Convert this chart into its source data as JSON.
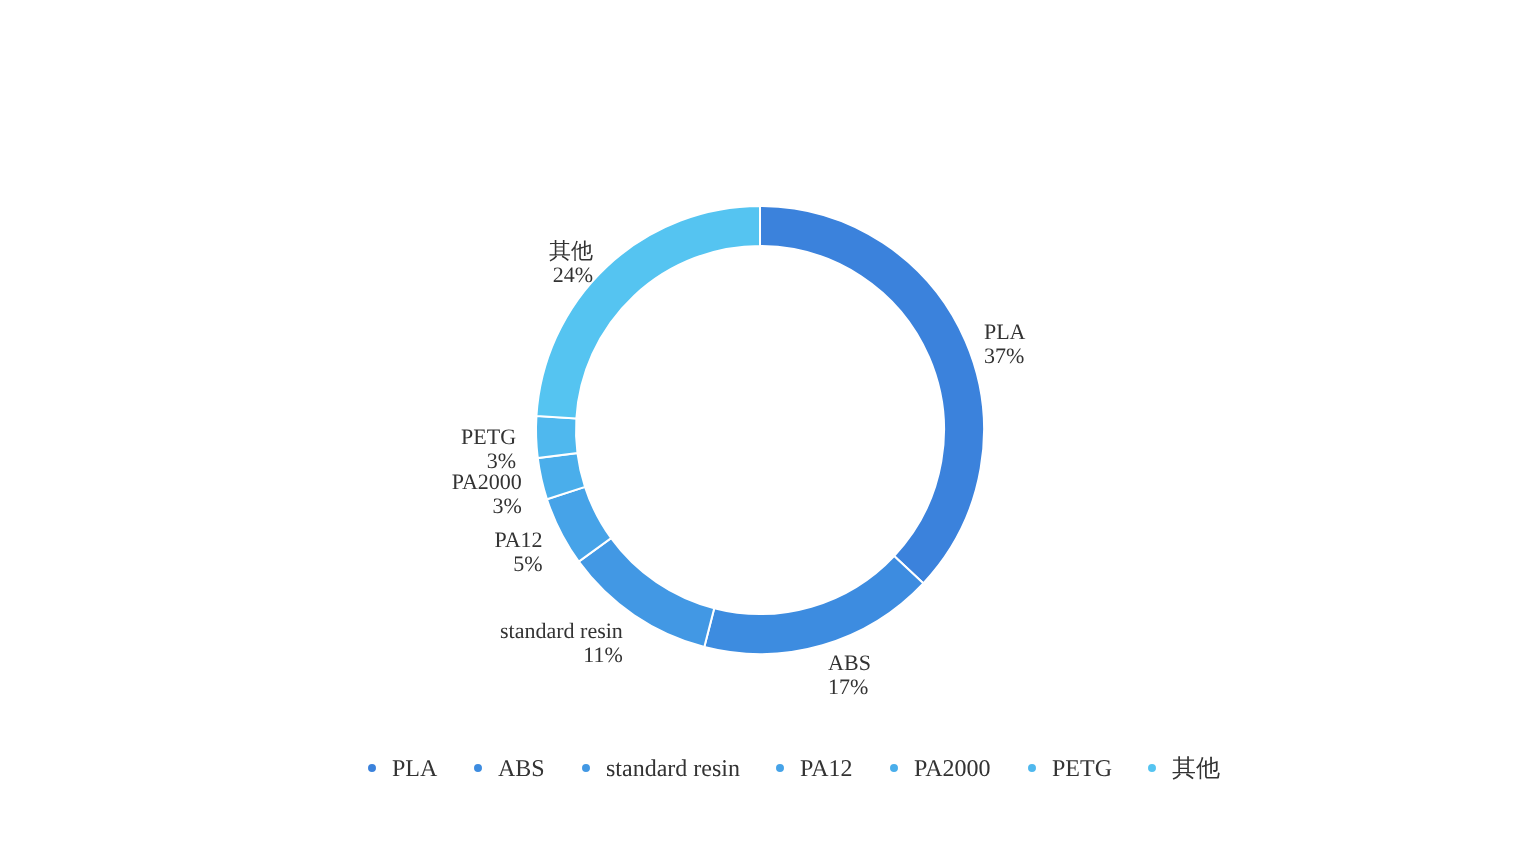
{
  "chart_data": {
    "type": "donut",
    "categories": [
      "PLA",
      "ABS",
      "standard resin",
      "PA12",
      "PA2000",
      "PETG",
      "其他"
    ],
    "values": [
      37,
      17,
      11,
      5,
      3,
      3,
      24
    ],
    "value_labels": [
      "37%",
      "17%",
      "11%",
      "5%",
      "3%",
      "3%",
      "24%"
    ],
    "colors": [
      "#3b82dc",
      "#3d8ce0",
      "#4298e4",
      "#46a3e8",
      "#4aaeeb",
      "#4fb8ee",
      "#55c4f1"
    ],
    "legend": "bottom"
  }
}
